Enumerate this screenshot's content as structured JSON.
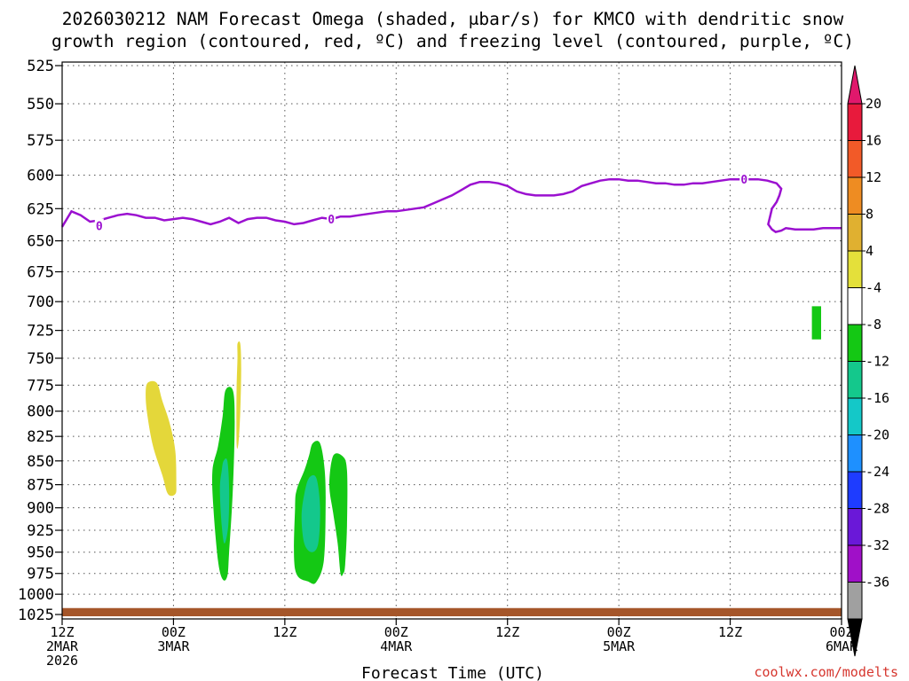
{
  "chart_data": {
    "type": "contour",
    "title_lines": [
      "2026030212 NAM Forecast Omega (shaded, μbar/s) for KMCO with dendritic snow",
      "growth region (contoured, red, ºC) and freezing level (contoured, purple, ºC)"
    ],
    "xlabel": "Forecast Time (UTC)",
    "ylabel": "",
    "x_range_hours": [
      0,
      84
    ],
    "y_range_hpa": [
      525,
      1025
    ],
    "y_ticks": [
      525,
      550,
      575,
      600,
      625,
      650,
      675,
      700,
      725,
      750,
      775,
      800,
      825,
      850,
      875,
      900,
      925,
      950,
      975,
      1000,
      1025
    ],
    "x_ticks": [
      {
        "hour": 0,
        "line1": "12Z",
        "line2": "2MAR",
        "line3": "2026"
      },
      {
        "hour": 12,
        "line1": "00Z",
        "line2": "3MAR",
        "line3": ""
      },
      {
        "hour": 24,
        "line1": "12Z",
        "line2": "",
        "line3": ""
      },
      {
        "hour": 36,
        "line1": "00Z",
        "line2": "4MAR",
        "line3": ""
      },
      {
        "hour": 48,
        "line1": "12Z",
        "line2": "",
        "line3": ""
      },
      {
        "hour": 60,
        "line1": "00Z",
        "line2": "5MAR",
        "line3": ""
      },
      {
        "hour": 72,
        "line1": "12Z",
        "line2": "",
        "line3": ""
      },
      {
        "hour": 84,
        "line1": "00Z",
        "line2": "6MAR",
        "line3": ""
      }
    ],
    "grid": true,
    "colorbar": {
      "labels": [
        "20",
        "16",
        "12",
        "8",
        "4",
        "-4",
        "-8",
        "-12",
        "-16",
        "-20",
        "-24",
        "-28",
        "-32",
        "-36"
      ],
      "colors": [
        "#e81a3c",
        "#f25a28",
        "#ee8c22",
        "#e0b030",
        "#e4e03a",
        "#ffffff",
        "#14c814",
        "#14c88c",
        "#14c8c8",
        "#1e90ff",
        "#1e3cff",
        "#6a18d8",
        "#a010c8",
        "#a0a0a0"
      ],
      "top_arrow_color": "#e0186c",
      "bottom_arrow_color": "#000000"
    },
    "freezing_level": {
      "color": "#9b10d0",
      "label": "0",
      "points": [
        [
          0,
          639
        ],
        [
          1,
          627
        ],
        [
          2,
          630
        ],
        [
          3,
          635
        ],
        [
          4,
          634
        ],
        [
          5,
          632
        ],
        [
          6,
          630
        ],
        [
          7,
          629
        ],
        [
          8,
          630
        ],
        [
          9,
          632
        ],
        [
          10,
          632
        ],
        [
          11,
          634
        ],
        [
          12,
          633
        ],
        [
          13,
          632
        ],
        [
          14,
          633
        ],
        [
          15,
          635
        ],
        [
          16,
          637
        ],
        [
          17,
          635
        ],
        [
          18,
          632
        ],
        [
          19,
          636
        ],
        [
          20,
          633
        ],
        [
          21,
          632
        ],
        [
          22,
          632
        ],
        [
          23,
          634
        ],
        [
          24,
          635
        ],
        [
          25,
          637
        ],
        [
          26,
          636
        ],
        [
          27,
          634
        ],
        [
          28,
          632
        ],
        [
          29,
          633
        ],
        [
          30,
          631
        ],
        [
          31,
          631
        ],
        [
          32,
          630
        ],
        [
          33,
          629
        ],
        [
          34,
          628
        ],
        [
          35,
          627
        ],
        [
          36,
          627
        ],
        [
          37,
          626
        ],
        [
          38,
          625
        ],
        [
          39,
          624
        ],
        [
          40,
          621
        ],
        [
          41,
          618
        ],
        [
          42,
          615
        ],
        [
          43,
          611
        ],
        [
          44,
          607
        ],
        [
          45,
          605
        ],
        [
          46,
          605
        ],
        [
          47,
          606
        ],
        [
          48,
          608
        ],
        [
          49,
          612
        ],
        [
          50,
          614
        ],
        [
          51,
          615
        ],
        [
          52,
          615
        ],
        [
          53,
          615
        ],
        [
          54,
          614
        ],
        [
          55,
          612
        ],
        [
          56,
          608
        ],
        [
          57,
          606
        ],
        [
          58,
          604
        ],
        [
          59,
          603
        ],
        [
          60,
          603
        ],
        [
          61,
          604
        ],
        [
          62,
          604
        ],
        [
          63,
          605
        ],
        [
          64,
          606
        ],
        [
          65,
          606
        ],
        [
          66,
          607
        ],
        [
          67,
          607
        ],
        [
          68,
          606
        ],
        [
          69,
          606
        ],
        [
          70,
          605
        ],
        [
          71,
          604
        ],
        [
          72,
          603
        ],
        [
          73,
          603
        ],
        [
          74,
          603
        ],
        [
          75,
          603
        ],
        [
          76,
          604
        ],
        [
          77,
          606
        ],
        [
          77.5,
          610
        ],
        [
          77.3,
          615
        ],
        [
          77,
          620
        ],
        [
          76.5,
          625
        ],
        [
          76.3,
          631
        ],
        [
          76.1,
          637
        ],
        [
          76.5,
          641
        ],
        [
          76.9,
          643
        ],
        [
          77.5,
          642
        ],
        [
          78,
          640
        ],
        [
          79,
          641
        ],
        [
          80,
          641
        ],
        [
          81,
          641
        ],
        [
          82,
          640
        ],
        [
          83,
          640
        ],
        [
          84,
          640
        ]
      ],
      "labels_at": [
        [
          4,
          638
        ],
        [
          29,
          633
        ],
        [
          73.5,
          603
        ]
      ]
    },
    "shaded_regions": [
      {
        "name": "omega-positive-4",
        "level": "4",
        "color": "#e4d73a",
        "points": [
          [
            9.2,
            773
          ],
          [
            10.2,
            773
          ],
          [
            10.8,
            790
          ],
          [
            11.6,
            812
          ],
          [
            12.2,
            840
          ],
          [
            12.3,
            873
          ],
          [
            12.2,
            885
          ],
          [
            11.4,
            885
          ],
          [
            10.8,
            865
          ],
          [
            9.8,
            835
          ],
          [
            9.2,
            805
          ],
          [
            9.0,
            785
          ]
        ]
      },
      {
        "name": "omega-positive-4-thin",
        "level": "4",
        "color": "#e4d73a",
        "points": [
          [
            18.9,
            737
          ],
          [
            19.2,
            737
          ],
          [
            19.3,
            760
          ],
          [
            19.2,
            800
          ],
          [
            19.0,
            832
          ],
          [
            18.8,
            832
          ],
          [
            18.8,
            780
          ],
          [
            18.9,
            750
          ]
        ]
      },
      {
        "name": "omega-negative-4-a",
        "level": "-4",
        "color": "#14c814",
        "points": [
          [
            17.6,
            780
          ],
          [
            18.4,
            780
          ],
          [
            18.6,
            810
          ],
          [
            18.4,
            880
          ],
          [
            18.0,
            950
          ],
          [
            17.8,
            978
          ],
          [
            17.3,
            982
          ],
          [
            16.8,
            960
          ],
          [
            16.3,
            900
          ],
          [
            16.2,
            860
          ],
          [
            16.8,
            835
          ],
          [
            17.3,
            805
          ]
        ]
      },
      {
        "name": "omega-negative-8-a",
        "level": "-8",
        "color": "#14c88c",
        "points": [
          [
            17.4,
            850
          ],
          [
            17.8,
            850
          ],
          [
            18.0,
            880
          ],
          [
            17.9,
            920
          ],
          [
            17.5,
            940
          ],
          [
            17.2,
            920
          ],
          [
            17.0,
            880
          ],
          [
            17.2,
            860
          ]
        ]
      },
      {
        "name": "omega-negative-4-b",
        "level": "-4",
        "color": "#14c814",
        "points": [
          [
            27.0,
            832
          ],
          [
            27.8,
            832
          ],
          [
            28.3,
            860
          ],
          [
            28.4,
            900
          ],
          [
            28.2,
            960
          ],
          [
            27.4,
            985
          ],
          [
            26.6,
            985
          ],
          [
            25.1,
            970
          ],
          [
            25.1,
            900
          ],
          [
            25.3,
            880
          ],
          [
            26.1,
            860
          ],
          [
            26.6,
            845
          ]
        ]
      },
      {
        "name": "omega-negative-8-b",
        "level": "-8",
        "color": "#14c88c",
        "points": [
          [
            26.6,
            868
          ],
          [
            27.4,
            868
          ],
          [
            27.8,
            900
          ],
          [
            27.6,
            940
          ],
          [
            26.9,
            950
          ],
          [
            26.1,
            940
          ],
          [
            25.8,
            910
          ],
          [
            26.1,
            885
          ]
        ]
      },
      {
        "name": "omega-negative-4-c",
        "level": "-4",
        "color": "#14c814",
        "points": [
          [
            29.2,
            845
          ],
          [
            30.2,
            845
          ],
          [
            30.7,
            860
          ],
          [
            30.7,
            920
          ],
          [
            30.5,
            965
          ],
          [
            30.3,
            975
          ],
          [
            30.0,
            975
          ],
          [
            29.7,
            940
          ],
          [
            29.2,
            905
          ],
          [
            28.8,
            875
          ]
        ]
      },
      {
        "name": "omega-negative-4-d",
        "level": "-4",
        "color": "#14c814",
        "points": [
          [
            80.8,
            704
          ],
          [
            81.8,
            704
          ],
          [
            81.8,
            733
          ],
          [
            80.8,
            733
          ]
        ]
      }
    ],
    "terrain": {
      "color": "#a5562a",
      "top_hpa": 1017,
      "bottom_hpa": 1025
    }
  },
  "credit": "coolwx.com/modelts"
}
